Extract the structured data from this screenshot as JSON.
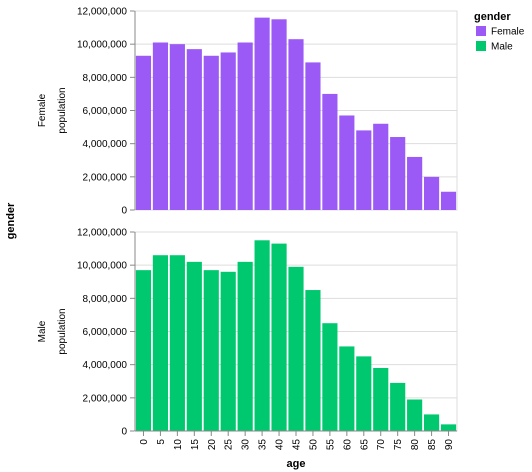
{
  "chart_data": {
    "type": "bar",
    "x_title": "age",
    "row_title": "gender",
    "y_title": "population",
    "legend": {
      "title": "gender",
      "position": "top-right"
    },
    "categories": [
      "0",
      "5",
      "10",
      "15",
      "20",
      "25",
      "30",
      "35",
      "40",
      "45",
      "50",
      "55",
      "60",
      "65",
      "70",
      "75",
      "80",
      "85",
      "90"
    ],
    "ylim": [
      0,
      12000000
    ],
    "y_ticks": [
      0,
      2000000,
      4000000,
      6000000,
      8000000,
      10000000,
      12000000
    ],
    "y_tick_labels": [
      "0",
      "2,000,000",
      "4,000,000",
      "6,000,000",
      "8,000,000",
      "10,000,000",
      "12,000,000"
    ],
    "grid": true,
    "series": [
      {
        "name": "Female",
        "color": "#9b59f5",
        "values": [
          9300000,
          10100000,
          10000000,
          9700000,
          9300000,
          9500000,
          10100000,
          11600000,
          11500000,
          10300000,
          8900000,
          7000000,
          5700000,
          4800000,
          5200000,
          4400000,
          3200000,
          2000000,
          1100000
        ]
      },
      {
        "name": "Male",
        "color": "#00c86e",
        "values": [
          9700000,
          10600000,
          10600000,
          10200000,
          9700000,
          9600000,
          10200000,
          11500000,
          11300000,
          9900000,
          8500000,
          6500000,
          5100000,
          4500000,
          3800000,
          2900000,
          1900000,
          1000000,
          400000
        ]
      }
    ]
  }
}
